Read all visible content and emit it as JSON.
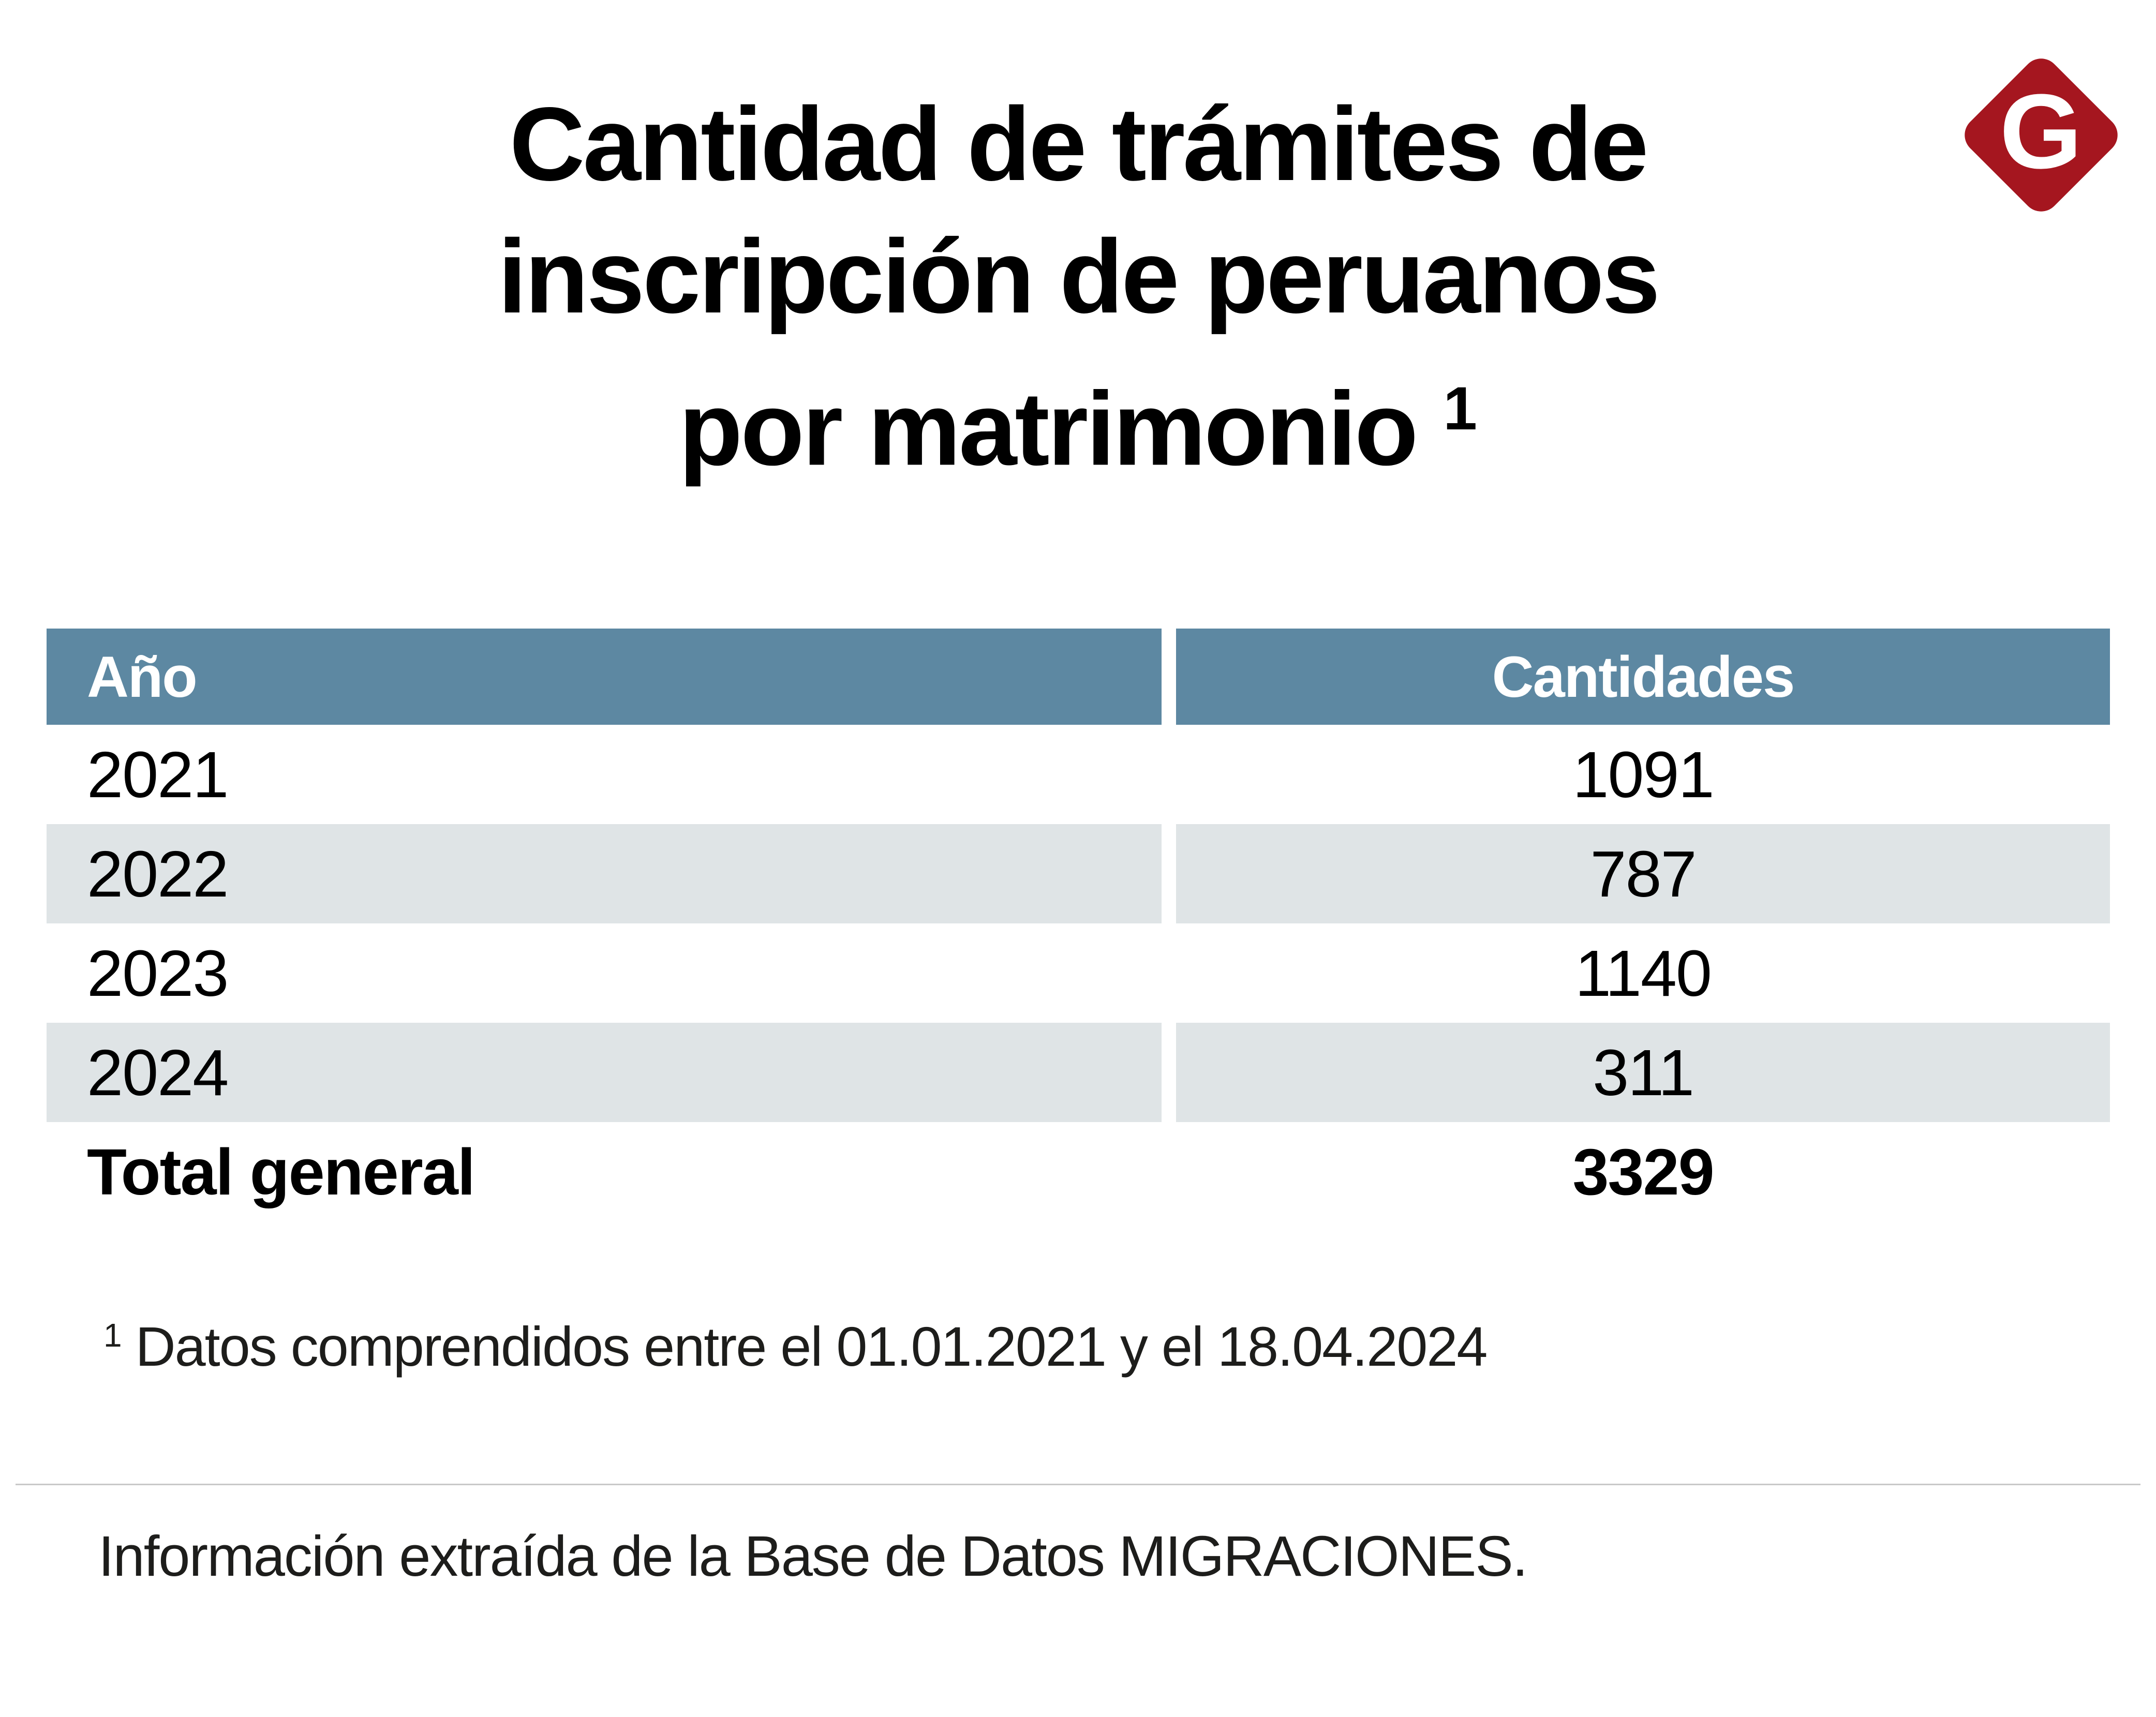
{
  "brand": {
    "logo_letter": "G",
    "logo_bg_color": "#a5161f"
  },
  "title": {
    "line1": "Cantidad de trámites de",
    "line2": "inscripción de peruanos",
    "line3": "por matrimonio",
    "footnote_marker": "1"
  },
  "table": {
    "header_bg_color": "#5d88a2",
    "alt_row_bg_color": "#dfe4e6",
    "columns": [
      {
        "label": "Año"
      },
      {
        "label": "Cantidades"
      }
    ],
    "rows": [
      {
        "year": "2021",
        "value": "1091"
      },
      {
        "year": "2022",
        "value": "787"
      },
      {
        "year": "2023",
        "value": "1140"
      },
      {
        "year": "2024",
        "value": "311"
      }
    ],
    "total": {
      "label": "Total general",
      "value": "3329"
    }
  },
  "footnote": {
    "marker": "1",
    "text": "Datos comprendidos entre el 01.01.2021 y el 18.04.2024"
  },
  "source": {
    "text": "Información extraída de la Base de Datos MIGRACIONES."
  },
  "chart_data": {
    "type": "table",
    "title": "Cantidad de trámites de inscripción de peruanos por matrimonio ¹",
    "columns": [
      "Año",
      "Cantidades"
    ],
    "rows": [
      [
        "2021",
        1091
      ],
      [
        "2022",
        787
      ],
      [
        "2023",
        1140
      ],
      [
        "2024",
        311
      ]
    ],
    "total_row": [
      "Total general",
      3329
    ],
    "footnote": "¹ Datos comprendidos entre el 01.01.2021 y el 18.04.2024",
    "source": "Información extraída de la Base de Datos MIGRACIONES.",
    "header_bg": "#5d88a2",
    "alt_row_bg": "#dfe4e6",
    "legend": "none",
    "grid": "off"
  }
}
